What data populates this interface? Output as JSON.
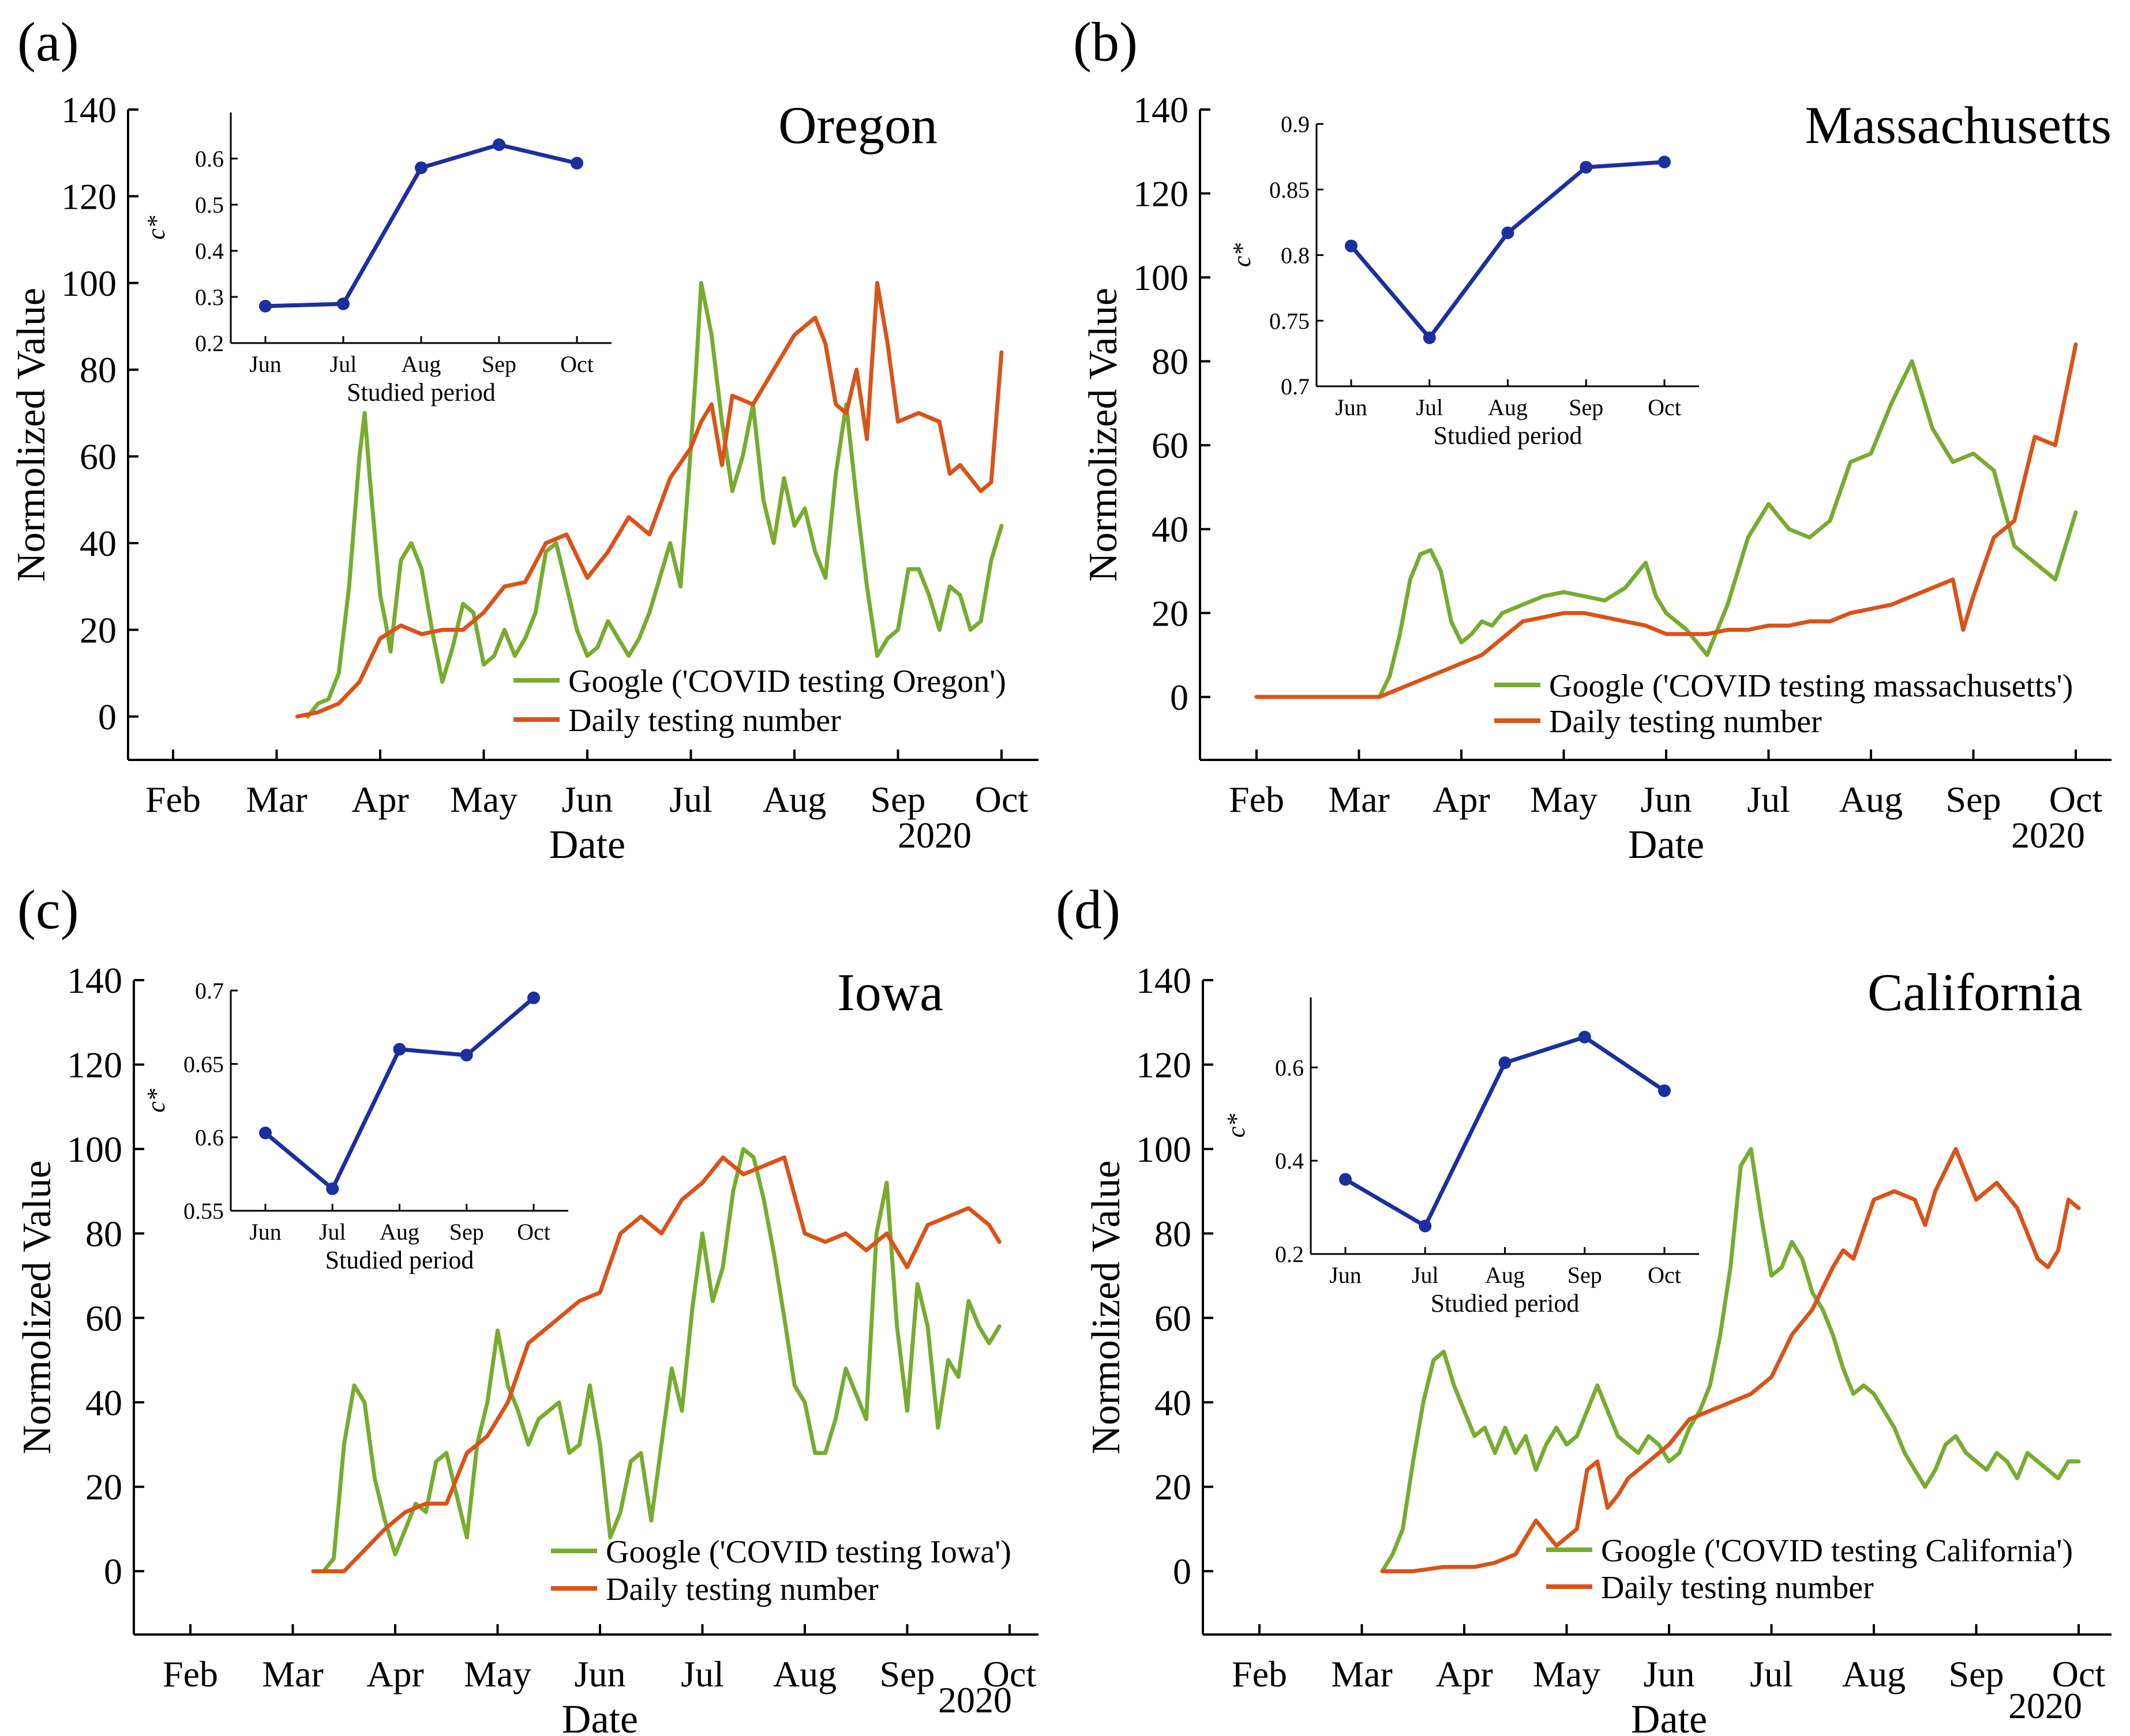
{
  "colors": {
    "google": "#77AC30",
    "testing": "#D95319",
    "inset": "#1B2F9E",
    "axis": "#000000"
  },
  "chart_data": [
    {
      "type": "line",
      "panel_label": "(a)",
      "state": "Oregon",
      "ylabel": "Normolized Value",
      "xlabel": "Date",
      "year_label": "2020",
      "ylim": [
        -10,
        140
      ],
      "yticks": [
        0,
        20,
        40,
        60,
        80,
        100,
        120,
        140
      ],
      "xlim": [
        0,
        8.4
      ],
      "xticks": [
        "Feb",
        "Mar",
        "Apr",
        "May",
        "Jun",
        "Jul",
        "Aug",
        "Sep",
        "Oct"
      ],
      "legend": [
        "Google ('COVID testing Oregon')",
        "Daily testing number"
      ],
      "series": [
        {
          "name": "Google ('COVID testing Oregon')",
          "x": [
            1.3,
            1.4,
            1.5,
            1.6,
            1.7,
            1.8,
            1.85,
            1.9,
            2.0,
            2.05,
            2.1,
            2.2,
            2.3,
            2.4,
            2.5,
            2.6,
            2.7,
            2.8,
            2.9,
            3.0,
            3.1,
            3.2,
            3.3,
            3.4,
            3.5,
            3.6,
            3.7,
            3.8,
            3.9,
            4.0,
            4.1,
            4.2,
            4.3,
            4.4,
            4.5,
            4.6,
            4.7,
            4.8,
            4.9,
            5.0,
            5.05,
            5.1,
            5.2,
            5.3,
            5.4,
            5.5,
            5.6,
            5.7,
            5.8,
            5.9,
            6.0,
            6.1,
            6.2,
            6.3,
            6.4,
            6.5,
            6.6,
            6.7,
            6.8,
            6.9,
            7.0,
            7.1,
            7.2,
            7.3,
            7.4,
            7.5,
            7.6,
            7.7,
            7.8,
            7.9,
            8.0
          ],
          "y": [
            0,
            3,
            4,
            10,
            30,
            60,
            70,
            55,
            28,
            22,
            15,
            36,
            40,
            34,
            20,
            8,
            16,
            26,
            24,
            12,
            14,
            20,
            14,
            18,
            24,
            38,
            40,
            30,
            20,
            14,
            16,
            22,
            18,
            14,
            18,
            24,
            32,
            40,
            30,
            62,
            80,
            100,
            88,
            68,
            52,
            60,
            72,
            50,
            40,
            55,
            44,
            48,
            38,
            32,
            56,
            72,
            50,
            30,
            14,
            18,
            20,
            34,
            34,
            28,
            20,
            30,
            28,
            20,
            22,
            36,
            44
          ]
        },
        {
          "name": "Daily testing number",
          "x": [
            1.2,
            1.4,
            1.6,
            1.8,
            2.0,
            2.2,
            2.4,
            2.6,
            2.8,
            3.0,
            3.2,
            3.4,
            3.6,
            3.8,
            4.0,
            4.2,
            4.4,
            4.6,
            4.8,
            5.0,
            5.1,
            5.2,
            5.3,
            5.4,
            5.6,
            5.8,
            6.0,
            6.2,
            6.3,
            6.4,
            6.5,
            6.6,
            6.7,
            6.8,
            6.9,
            7.0,
            7.2,
            7.4,
            7.5,
            7.6,
            7.8,
            7.9,
            8.0
          ],
          "y": [
            0,
            1,
            3,
            8,
            18,
            21,
            19,
            20,
            20,
            24,
            30,
            31,
            40,
            42,
            32,
            38,
            46,
            42,
            55,
            62,
            68,
            72,
            58,
            74,
            72,
            80,
            88,
            92,
            86,
            72,
            70,
            80,
            64,
            100,
            86,
            68,
            70,
            68,
            56,
            58,
            52,
            54,
            84
          ]
        }
      ],
      "inset": {
        "categories": [
          "Jun",
          "Jul",
          "Aug",
          "Sep",
          "Oct"
        ],
        "values": [
          0.28,
          0.285,
          0.58,
          0.63,
          0.59
        ],
        "ylabel": "c*",
        "xlabel": "Studied period",
        "ylim": [
          0.2,
          0.7
        ],
        "yticks": [
          0.2,
          0.3,
          0.4,
          0.5,
          0.6
        ],
        "ytick_labels": [
          "0.2",
          "0.3",
          "0.4",
          "0.5",
          "0.6"
        ]
      }
    },
    {
      "type": "line",
      "panel_label": "(b)",
      "state": "Massachusetts",
      "ylabel": "Normolized Value",
      "xlabel": "Date",
      "year_label": "2020",
      "ylim": [
        -15,
        140
      ],
      "yticks": [
        0,
        20,
        40,
        60,
        80,
        100,
        120,
        140
      ],
      "xlim": [
        -0.6,
        8.1
      ],
      "xticks": [
        "Feb",
        "Mar",
        "Apr",
        "May",
        "Jun",
        "Jul",
        "Aug",
        "Sep",
        "Oct"
      ],
      "legend": [
        "Google ('COVID testing massachusetts')",
        "Daily testing number"
      ],
      "series": [
        {
          "name": "Google ('COVID testing massachusetts')",
          "x": [
            1.2,
            1.3,
            1.4,
            1.5,
            1.6,
            1.7,
            1.8,
            1.9,
            2.0,
            2.1,
            2.2,
            2.3,
            2.4,
            2.6,
            2.8,
            3.0,
            3.2,
            3.4,
            3.6,
            3.8,
            3.9,
            4.0,
            4.2,
            4.4,
            4.6,
            4.8,
            5.0,
            5.2,
            5.4,
            5.6,
            5.8,
            6.0,
            6.2,
            6.4,
            6.5,
            6.6,
            6.8,
            7.0,
            7.2,
            7.4,
            7.6,
            7.8,
            7.9,
            8.0
          ],
          "y": [
            0,
            5,
            15,
            28,
            34,
            35,
            30,
            18,
            13,
            15,
            18,
            17,
            20,
            22,
            24,
            25,
            24,
            23,
            26,
            32,
            24,
            20,
            16,
            10,
            22,
            38,
            46,
            40,
            38,
            42,
            56,
            58,
            70,
            80,
            72,
            64,
            56,
            58,
            54,
            36,
            32,
            28,
            36,
            44
          ]
        },
        {
          "name": "Daily testing number",
          "x": [
            0,
            1.0,
            1.2,
            1.4,
            1.6,
            1.8,
            2.0,
            2.2,
            2.4,
            2.6,
            2.8,
            3.0,
            3.2,
            3.4,
            3.6,
            3.8,
            3.9,
            4.0,
            4.2,
            4.4,
            4.6,
            4.8,
            5.0,
            5.2,
            5.4,
            5.6,
            5.8,
            6.0,
            6.2,
            6.4,
            6.6,
            6.8,
            6.9,
            7.0,
            7.2,
            7.4,
            7.6,
            7.8,
            8.0
          ],
          "y": [
            0,
            0,
            0,
            2,
            4,
            6,
            8,
            10,
            14,
            18,
            19,
            20,
            20,
            19,
            18,
            17,
            16,
            15,
            15,
            15,
            16,
            16,
            17,
            17,
            18,
            18,
            20,
            21,
            22,
            24,
            26,
            28,
            16,
            24,
            38,
            42,
            62,
            60,
            84
          ]
        }
      ],
      "inset": {
        "categories": [
          "Jun",
          "Jul",
          "Aug",
          "Sep",
          "Oct"
        ],
        "values": [
          0.807,
          0.737,
          0.817,
          0.867,
          0.871
        ],
        "ylabel": "c*",
        "xlabel": "Studied period",
        "ylim": [
          0.7,
          0.9
        ],
        "yticks": [
          0.7,
          0.75,
          0.8,
          0.85,
          0.9
        ],
        "ytick_labels": [
          "0.7",
          "0.75",
          "0.8",
          "0.85",
          "0.9"
        ]
      }
    },
    {
      "type": "line",
      "panel_label": "(c)",
      "state": "Iowa",
      "ylabel": "Normolized Value",
      "xlabel": "Date",
      "year_label": "2020",
      "ylim": [
        -15,
        140
      ],
      "yticks": [
        0,
        20,
        40,
        60,
        80,
        100,
        120,
        140
      ],
      "xlim": [
        -0.5,
        8.0
      ],
      "xticks": [
        "Feb",
        "Mar",
        "Apr",
        "May",
        "Jun",
        "Jul",
        "Aug",
        "Sep",
        "Oct"
      ],
      "legend": [
        "Google ('COVID testing Iowa')",
        "Daily testing number"
      ],
      "series": [
        {
          "name": "Google ('COVID testing Iowa')",
          "x": [
            1.3,
            1.4,
            1.5,
            1.6,
            1.7,
            1.8,
            1.9,
            2.0,
            2.1,
            2.2,
            2.3,
            2.4,
            2.5,
            2.6,
            2.7,
            2.8,
            2.9,
            3.0,
            3.1,
            3.2,
            3.3,
            3.4,
            3.5,
            3.6,
            3.7,
            3.8,
            3.9,
            4.0,
            4.1,
            4.2,
            4.3,
            4.4,
            4.5,
            4.6,
            4.7,
            4.8,
            4.9,
            5.0,
            5.1,
            5.2,
            5.3,
            5.4,
            5.5,
            5.6,
            5.7,
            5.8,
            5.9,
            6.0,
            6.1,
            6.2,
            6.3,
            6.4,
            6.5,
            6.6,
            6.7,
            6.8,
            6.9,
            7.0,
            7.1,
            7.2,
            7.3,
            7.4,
            7.5,
            7.6,
            7.7,
            7.8,
            7.9
          ],
          "y": [
            0,
            3,
            30,
            44,
            40,
            22,
            12,
            4,
            10,
            16,
            14,
            26,
            28,
            18,
            8,
            30,
            40,
            57,
            44,
            38,
            30,
            36,
            38,
            40,
            28,
            30,
            44,
            30,
            8,
            14,
            26,
            28,
            12,
            30,
            48,
            38,
            62,
            80,
            64,
            72,
            90,
            100,
            98,
            88,
            75,
            60,
            44,
            40,
            28,
            28,
            36,
            48,
            42,
            36,
            80,
            92,
            58,
            38,
            68,
            58,
            34,
            50,
            46,
            64,
            58,
            54,
            58
          ]
        },
        {
          "name": "Daily testing number",
          "x": [
            1.2,
            1.5,
            1.7,
            1.9,
            2.1,
            2.3,
            2.5,
            2.7,
            2.9,
            3.1,
            3.3,
            3.5,
            3.6,
            3.8,
            4.0,
            4.2,
            4.4,
            4.6,
            4.8,
            5.0,
            5.2,
            5.4,
            5.6,
            5.8,
            6.0,
            6.2,
            6.4,
            6.6,
            6.8,
            7.0,
            7.2,
            7.4,
            7.6,
            7.8,
            7.9
          ],
          "y": [
            0,
            0,
            5,
            10,
            14,
            16,
            16,
            28,
            32,
            40,
            54,
            58,
            60,
            64,
            66,
            80,
            84,
            80,
            88,
            92,
            98,
            94,
            96,
            98,
            80,
            78,
            80,
            76,
            80,
            72,
            82,
            84,
            86,
            82,
            78
          ]
        }
      ],
      "inset": {
        "categories": [
          "Jun",
          "Jul",
          "Aug",
          "Sep",
          "Oct"
        ],
        "values": [
          0.603,
          0.565,
          0.66,
          0.656,
          0.695
        ],
        "ylabel": "c*",
        "xlabel": "Studied period",
        "ylim": [
          0.55,
          0.7
        ],
        "yticks": [
          0.55,
          0.6,
          0.65,
          0.7
        ],
        "ytick_labels": [
          "0.55",
          "0.6",
          "0.65",
          "0.7"
        ]
      }
    },
    {
      "type": "line",
      "panel_label": "(d)",
      "state": "California",
      "ylabel": "Normolized Value",
      "xlabel": "Date",
      "year_label": "2020",
      "ylim": [
        -15,
        140
      ],
      "yticks": [
        0,
        20,
        40,
        60,
        80,
        100,
        120,
        140
      ],
      "xlim": [
        -0.6,
        8.1
      ],
      "xticks": [
        "Feb",
        "Mar",
        "Apr",
        "May",
        "Jun",
        "Jul",
        "Aug",
        "Sep",
        "Oct"
      ],
      "legend": [
        "Google ('COVID testing California')",
        "Daily testing number"
      ],
      "series": [
        {
          "name": "Google ('COVID testing California')",
          "x": [
            1.2,
            1.3,
            1.4,
            1.5,
            1.6,
            1.7,
            1.8,
            1.9,
            2.0,
            2.1,
            2.2,
            2.3,
            2.4,
            2.5,
            2.6,
            2.7,
            2.8,
            2.9,
            3.0,
            3.1,
            3.2,
            3.3,
            3.4,
            3.5,
            3.6,
            3.7,
            3.8,
            3.9,
            4.0,
            4.1,
            4.2,
            4.3,
            4.4,
            4.5,
            4.6,
            4.7,
            4.8,
            4.9,
            5.0,
            5.1,
            5.2,
            5.3,
            5.4,
            5.5,
            5.6,
            5.7,
            5.8,
            5.9,
            6.0,
            6.1,
            6.2,
            6.3,
            6.4,
            6.5,
            6.6,
            6.7,
            6.8,
            6.9,
            7.0,
            7.1,
            7.2,
            7.3,
            7.4,
            7.5,
            7.6,
            7.7,
            7.8,
            7.9,
            8.0
          ],
          "y": [
            0,
            4,
            10,
            26,
            40,
            50,
            52,
            44,
            38,
            32,
            34,
            28,
            34,
            28,
            32,
            24,
            30,
            34,
            30,
            32,
            38,
            44,
            38,
            32,
            30,
            28,
            32,
            30,
            26,
            28,
            34,
            38,
            44,
            56,
            72,
            96,
            100,
            84,
            70,
            72,
            78,
            74,
            66,
            62,
            56,
            48,
            42,
            44,
            42,
            38,
            34,
            28,
            24,
            20,
            24,
            30,
            32,
            28,
            26,
            24,
            28,
            26,
            22,
            28,
            26,
            24,
            22,
            26,
            26
          ]
        },
        {
          "name": "Daily testing number",
          "x": [
            1.2,
            1.5,
            1.8,
            2.1,
            2.3,
            2.5,
            2.6,
            2.7,
            2.9,
            3.1,
            3.2,
            3.3,
            3.4,
            3.5,
            3.6,
            3.8,
            4.0,
            4.2,
            4.4,
            4.6,
            4.8,
            5.0,
            5.2,
            5.4,
            5.6,
            5.7,
            5.8,
            6.0,
            6.2,
            6.4,
            6.5,
            6.6,
            6.8,
            7.0,
            7.2,
            7.4,
            7.5,
            7.6,
            7.7,
            7.8,
            7.9,
            8.0
          ],
          "y": [
            0,
            0,
            1,
            1,
            2,
            4,
            8,
            12,
            6,
            10,
            24,
            26,
            15,
            18,
            22,
            26,
            30,
            36,
            38,
            40,
            42,
            46,
            56,
            62,
            72,
            76,
            74,
            88,
            90,
            88,
            82,
            90,
            100,
            88,
            92,
            86,
            80,
            74,
            72,
            76,
            88,
            86
          ]
        }
      ],
      "inset": {
        "categories": [
          "Jun",
          "Jul",
          "Aug",
          "Sep",
          "Oct"
        ],
        "values": [
          0.36,
          0.26,
          0.61,
          0.665,
          0.55
        ],
        "ylabel": "c*",
        "xlabel": "Studied period",
        "ylim": [
          0.2,
          0.75
        ],
        "yticks": [
          0.2,
          0.4,
          0.6
        ],
        "ytick_labels": [
          "0.2",
          "0.4",
          "0.6"
        ]
      }
    }
  ]
}
